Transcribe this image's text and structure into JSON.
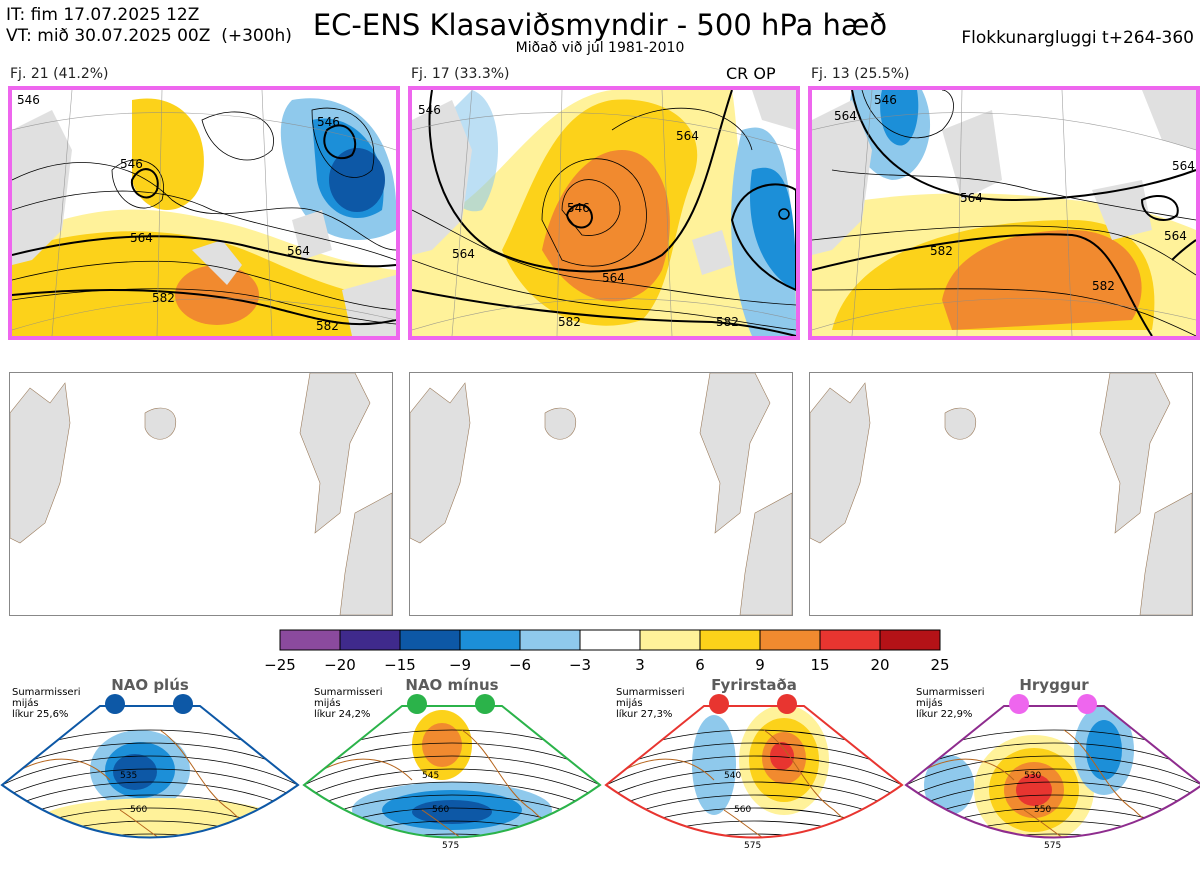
{
  "header": {
    "it_line": "IT: fim 17.07.2025 12Z",
    "vt_line": "VT: mið 30.07.2025 00Z  (+300h)",
    "title": "EC-ENS Klasaviðsmyndir - 500 hPa hæð",
    "subtitle": "Miðað við júl 1981-2010",
    "window": "Flokkunargluggi t+264-360"
  },
  "clusters": [
    {
      "label": "Fj. 21 (41.2%)",
      "contours": [
        "546",
        "546",
        "546",
        "564",
        "564",
        "582",
        "582"
      ]
    },
    {
      "label": "Fj. 17 (33.3%)",
      "contours": [
        "546",
        "546",
        "564",
        "564",
        "564",
        "582",
        "582"
      ],
      "extra": "CR OP"
    },
    {
      "label": "Fj. 13 (25.5%)",
      "contours": [
        "564",
        "546",
        "564",
        "582",
        "582",
        "564",
        "564"
      ]
    }
  ],
  "colorbar": {
    "ticks": [
      "−25",
      "−20",
      "−15",
      "−9",
      "−6",
      "−3",
      "3",
      "6",
      "9",
      "15",
      "20",
      "25"
    ],
    "colors": [
      "#8b4a9e",
      "#3f2a8c",
      "#0d58a6",
      "#1c8fd8",
      "#8fc9ec",
      "#ffffff",
      "#fff29a",
      "#fcd21a",
      "#f18a2f",
      "#e83530",
      "#b41217"
    ]
  },
  "regimes": [
    {
      "title": "NAO plús",
      "note": "Sumarmisseri\nmijás\nlíkur 25,6%",
      "dot_color": "#0d58a6",
      "border": "#0d58a6",
      "contours": [
        "535",
        "560"
      ]
    },
    {
      "title": "NAO mínus",
      "note": "Sumarmisseri\nmijás\nlíkur 24,2%",
      "dot_color": "#2bb34a",
      "border": "#2bb34a",
      "contours": [
        "545",
        "560",
        "575"
      ]
    },
    {
      "title": "Fyrirstaða",
      "note": "Sumarmisseri\nmijás\nlíkur 27,3%",
      "dot_color": "#e83530",
      "border": "#e83530",
      "contours": [
        "540",
        "560",
        "575"
      ]
    },
    {
      "title": "Hryggur",
      "note": "Sumarmisseri\nmijás\nlíkur 22,9%",
      "dot_color": "#ee66ee",
      "border": "#8e2c8e",
      "contours": [
        "530",
        "550",
        "575"
      ]
    }
  ]
}
